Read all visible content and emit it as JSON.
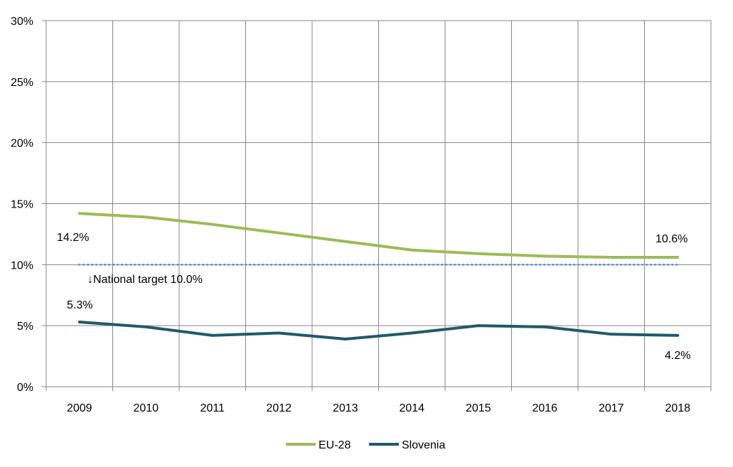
{
  "chart_data": {
    "type": "line",
    "title": "",
    "xlabel": "",
    "ylabel": "",
    "categories": [
      "2009",
      "2010",
      "2011",
      "2012",
      "2013",
      "2014",
      "2015",
      "2016",
      "2017",
      "2018"
    ],
    "ylim": [
      0,
      30
    ],
    "yticks": [
      0,
      5,
      10,
      15,
      20,
      25,
      30
    ],
    "ytick_labels": [
      "0%",
      "5%",
      "10%",
      "15%",
      "20%",
      "25%",
      "30%"
    ],
    "grid": true,
    "series": [
      {
        "name": "EU-28",
        "color": "#9bbb59",
        "values": [
          14.2,
          13.9,
          13.3,
          12.6,
          11.9,
          11.2,
          10.9,
          10.7,
          10.6,
          10.6
        ]
      },
      {
        "name": "Slovenia",
        "color": "#215968",
        "values": [
          5.3,
          4.9,
          4.2,
          4.4,
          3.9,
          4.4,
          5.0,
          4.9,
          4.3,
          4.2
        ]
      }
    ],
    "reference_line": {
      "name": "National target",
      "value": 10.0,
      "color": "#5b8fd6",
      "label": "↓National target  10.0%"
    },
    "data_labels": [
      {
        "series": "EU-28",
        "category": "2009",
        "text": "14.2%"
      },
      {
        "series": "EU-28",
        "category": "2018",
        "text": "10.6%"
      },
      {
        "series": "Slovenia",
        "category": "2009",
        "text": "5.3%"
      },
      {
        "series": "Slovenia",
        "category": "2018",
        "text": "4.2%"
      }
    ],
    "legend": {
      "placement": "bottom",
      "entries": [
        "EU-28",
        "Slovenia"
      ]
    }
  }
}
